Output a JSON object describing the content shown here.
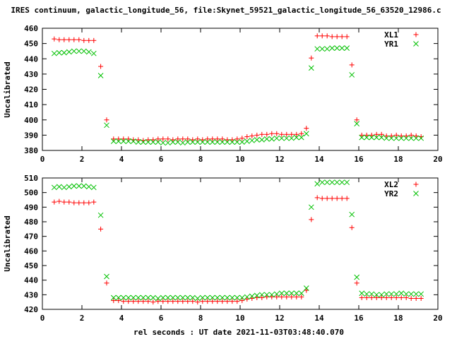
{
  "chart_data": {
    "title": "IRES continuum, galactic_longitude_56, file:Skynet_59521_galactic_longitude_56_63520_12986.c",
    "xlabel": "rel seconds : UT date 2021-11-03T03:48:40.070",
    "panels": [
      {
        "type": "scatter",
        "ylabel": "Uncalibrated",
        "xlim": [
          0,
          20
        ],
        "ylim": [
          380,
          460
        ],
        "xticks": [
          0,
          2,
          4,
          6,
          8,
          10,
          12,
          14,
          16,
          18,
          20
        ],
        "yticks": [
          380,
          390,
          400,
          410,
          420,
          430,
          440,
          450,
          460
        ],
        "grid": false,
        "legend_position": "top-right",
        "series": [
          {
            "name": "XL1",
            "marker": "plus",
            "color": "#ff0000",
            "x": [
              0.6,
              0.85,
              1.1,
              1.35,
              1.6,
              1.85,
              2.1,
              2.35,
              2.6,
              2.95,
              3.25,
              3.6,
              3.85,
              4.1,
              4.35,
              4.6,
              4.85,
              5.1,
              5.35,
              5.6,
              5.85,
              6.1,
              6.35,
              6.6,
              6.85,
              7.1,
              7.35,
              7.6,
              7.85,
              8.1,
              8.35,
              8.6,
              8.85,
              9.1,
              9.35,
              9.6,
              9.85,
              10.1,
              10.35,
              10.6,
              10.85,
              11.1,
              11.35,
              11.6,
              11.85,
              12.1,
              12.35,
              12.6,
              12.85,
              13.1,
              13.35,
              13.6,
              13.9,
              14.15,
              14.4,
              14.65,
              14.9,
              15.15,
              15.4,
              15.65,
              15.9,
              16.15,
              16.4,
              16.65,
              16.9,
              17.15,
              17.4,
              17.65,
              17.9,
              18.15,
              18.4,
              18.65,
              18.9,
              19.15
            ],
            "y": [
              453,
              452.5,
              452.5,
              452.5,
              452.5,
              452.5,
              452,
              452,
              452,
              435,
              400,
              387.5,
              387.5,
              387.5,
              387.5,
              387,
              387,
              386.5,
              387,
              387,
              387.5,
              387.5,
              387.5,
              387,
              387.5,
              387.5,
              387.5,
              387,
              387.5,
              387,
              387.5,
              387.5,
              387.5,
              387.5,
              387,
              387,
              387.5,
              388,
              389,
              389.5,
              390,
              390.5,
              390.5,
              391,
              391,
              390.5,
              390.5,
              390.5,
              390.5,
              391,
              394.5,
              440.5,
              455,
              455,
              455,
              454.5,
              454.5,
              454.5,
              454.5,
              436,
              400,
              390,
              390,
              390,
              390.5,
              390.5,
              389.5,
              389.5,
              390,
              389.5,
              389.5,
              390,
              389.5,
              389
            ]
          },
          {
            "name": "YR1",
            "marker": "cross",
            "color": "#00c000",
            "x": [
              0.6,
              0.85,
              1.1,
              1.35,
              1.6,
              1.85,
              2.1,
              2.35,
              2.6,
              2.95,
              3.25,
              3.6,
              3.85,
              4.1,
              4.35,
              4.6,
              4.85,
              5.1,
              5.35,
              5.6,
              5.85,
              6.1,
              6.35,
              6.6,
              6.85,
              7.1,
              7.35,
              7.6,
              7.85,
              8.1,
              8.35,
              8.6,
              8.85,
              9.1,
              9.35,
              9.6,
              9.85,
              10.1,
              10.35,
              10.6,
              10.85,
              11.1,
              11.35,
              11.6,
              11.85,
              12.1,
              12.35,
              12.6,
              12.85,
              13.1,
              13.35,
              13.6,
              13.9,
              14.15,
              14.4,
              14.65,
              14.9,
              15.15,
              15.4,
              15.65,
              15.9,
              16.15,
              16.4,
              16.65,
              16.9,
              17.15,
              17.4,
              17.65,
              17.9,
              18.15,
              18.4,
              18.65,
              18.9,
              19.15
            ],
            "y": [
              443.5,
              444,
              444,
              444.5,
              445,
              445,
              445,
              444.5,
              443.5,
              429,
              396.5,
              386,
              386,
              386,
              386,
              386,
              385.5,
              385.5,
              385.5,
              385.5,
              385.5,
              385,
              385,
              385.5,
              385.5,
              385,
              385.5,
              385.5,
              385.5,
              385.5,
              385.5,
              385.5,
              385.5,
              385.5,
              385.5,
              385.5,
              385.5,
              385.5,
              386,
              386.5,
              387,
              387,
              387.5,
              387.5,
              388,
              388,
              388,
              388,
              388.5,
              388.5,
              391,
              434,
              446.5,
              446.5,
              446.5,
              447,
              447,
              447,
              447,
              429.5,
              397.5,
              388.5,
              388.5,
              388.5,
              388.5,
              388.5,
              388,
              388,
              388,
              388,
              388,
              388,
              388,
              388
            ]
          }
        ]
      },
      {
        "type": "scatter",
        "ylabel": "Uncalibrated",
        "xlim": [
          0,
          20
        ],
        "ylim": [
          420,
          510
        ],
        "xticks": [
          0,
          2,
          4,
          6,
          8,
          10,
          12,
          14,
          16,
          18,
          20
        ],
        "yticks": [
          420,
          430,
          440,
          450,
          460,
          470,
          480,
          490,
          500,
          510
        ],
        "grid": false,
        "legend_position": "top-right",
        "series": [
          {
            "name": "XL2",
            "marker": "plus",
            "color": "#ff0000",
            "x": [
              0.6,
              0.85,
              1.1,
              1.35,
              1.6,
              1.85,
              2.1,
              2.35,
              2.6,
              2.95,
              3.25,
              3.6,
              3.85,
              4.1,
              4.35,
              4.6,
              4.85,
              5.1,
              5.35,
              5.6,
              5.85,
              6.1,
              6.35,
              6.6,
              6.85,
              7.1,
              7.35,
              7.6,
              7.85,
              8.1,
              8.35,
              8.6,
              8.85,
              9.1,
              9.35,
              9.6,
              9.85,
              10.1,
              10.35,
              10.6,
              10.85,
              11.1,
              11.35,
              11.6,
              11.85,
              12.1,
              12.35,
              12.6,
              12.85,
              13.1,
              13.35,
              13.6,
              13.9,
              14.15,
              14.4,
              14.65,
              14.9,
              15.15,
              15.4,
              15.65,
              15.9,
              16.15,
              16.4,
              16.65,
              16.9,
              17.15,
              17.4,
              17.65,
              17.9,
              18.15,
              18.4,
              18.65,
              18.9,
              19.15
            ],
            "y": [
              493.5,
              494,
              493.5,
              493.5,
              493,
              493,
              493,
              493,
              493.5,
              475,
              438,
              426,
              426,
              425.5,
              425.5,
              425.5,
              425.5,
              425.5,
              425.5,
              425,
              425.5,
              425.5,
              425.5,
              425.5,
              425.5,
              425.5,
              425.5,
              425.5,
              425,
              425.5,
              425.5,
              425.5,
              425.5,
              425.5,
              425.5,
              425.5,
              425.5,
              426,
              427,
              427.5,
              428,
              428,
              428.5,
              428.5,
              428.5,
              428.5,
              428.5,
              428.5,
              428.5,
              428.5,
              433,
              481.5,
              496.5,
              496,
              496,
              496,
              496,
              496,
              496,
              476,
              438,
              428,
              428,
              428,
              428,
              428,
              428,
              428,
              428,
              428,
              428,
              427.5,
              427.5,
              427.5
            ]
          },
          {
            "name": "YR2",
            "marker": "cross",
            "color": "#00c000",
            "x": [
              0.6,
              0.85,
              1.1,
              1.35,
              1.6,
              1.85,
              2.1,
              2.35,
              2.6,
              2.95,
              3.25,
              3.6,
              3.85,
              4.1,
              4.35,
              4.6,
              4.85,
              5.1,
              5.35,
              5.6,
              5.85,
              6.1,
              6.35,
              6.6,
              6.85,
              7.1,
              7.35,
              7.6,
              7.85,
              8.1,
              8.35,
              8.6,
              8.85,
              9.1,
              9.35,
              9.6,
              9.85,
              10.1,
              10.35,
              10.6,
              10.85,
              11.1,
              11.35,
              11.6,
              11.85,
              12.1,
              12.35,
              12.6,
              12.85,
              13.1,
              13.35,
              13.6,
              13.9,
              14.15,
              14.4,
              14.65,
              14.9,
              15.15,
              15.4,
              15.65,
              15.9,
              16.15,
              16.4,
              16.65,
              16.9,
              17.15,
              17.4,
              17.65,
              17.9,
              18.15,
              18.4,
              18.65,
              18.9,
              19.15
            ],
            "y": [
              503.5,
              504,
              503.5,
              504,
              504.5,
              504.5,
              504.5,
              504,
              503.5,
              484.5,
              442.5,
              428,
              428,
              428,
              428,
              428,
              428,
              428,
              428,
              428,
              427.5,
              428,
              428,
              428,
              428,
              428,
              428,
              428,
              427.5,
              428,
              428,
              428,
              428,
              428,
              428,
              428,
              428,
              428,
              428.5,
              429,
              429.5,
              430,
              430,
              430,
              430.5,
              431,
              431,
              431,
              431,
              431,
              434.5,
              490,
              506,
              507,
              507,
              507,
              507,
              507,
              507,
              485,
              442,
              431,
              430.5,
              430.5,
              430,
              430,
              430.5,
              430.5,
              430.5,
              431,
              430.5,
              430.5,
              430.5,
              430.5
            ]
          }
        ]
      }
    ]
  }
}
